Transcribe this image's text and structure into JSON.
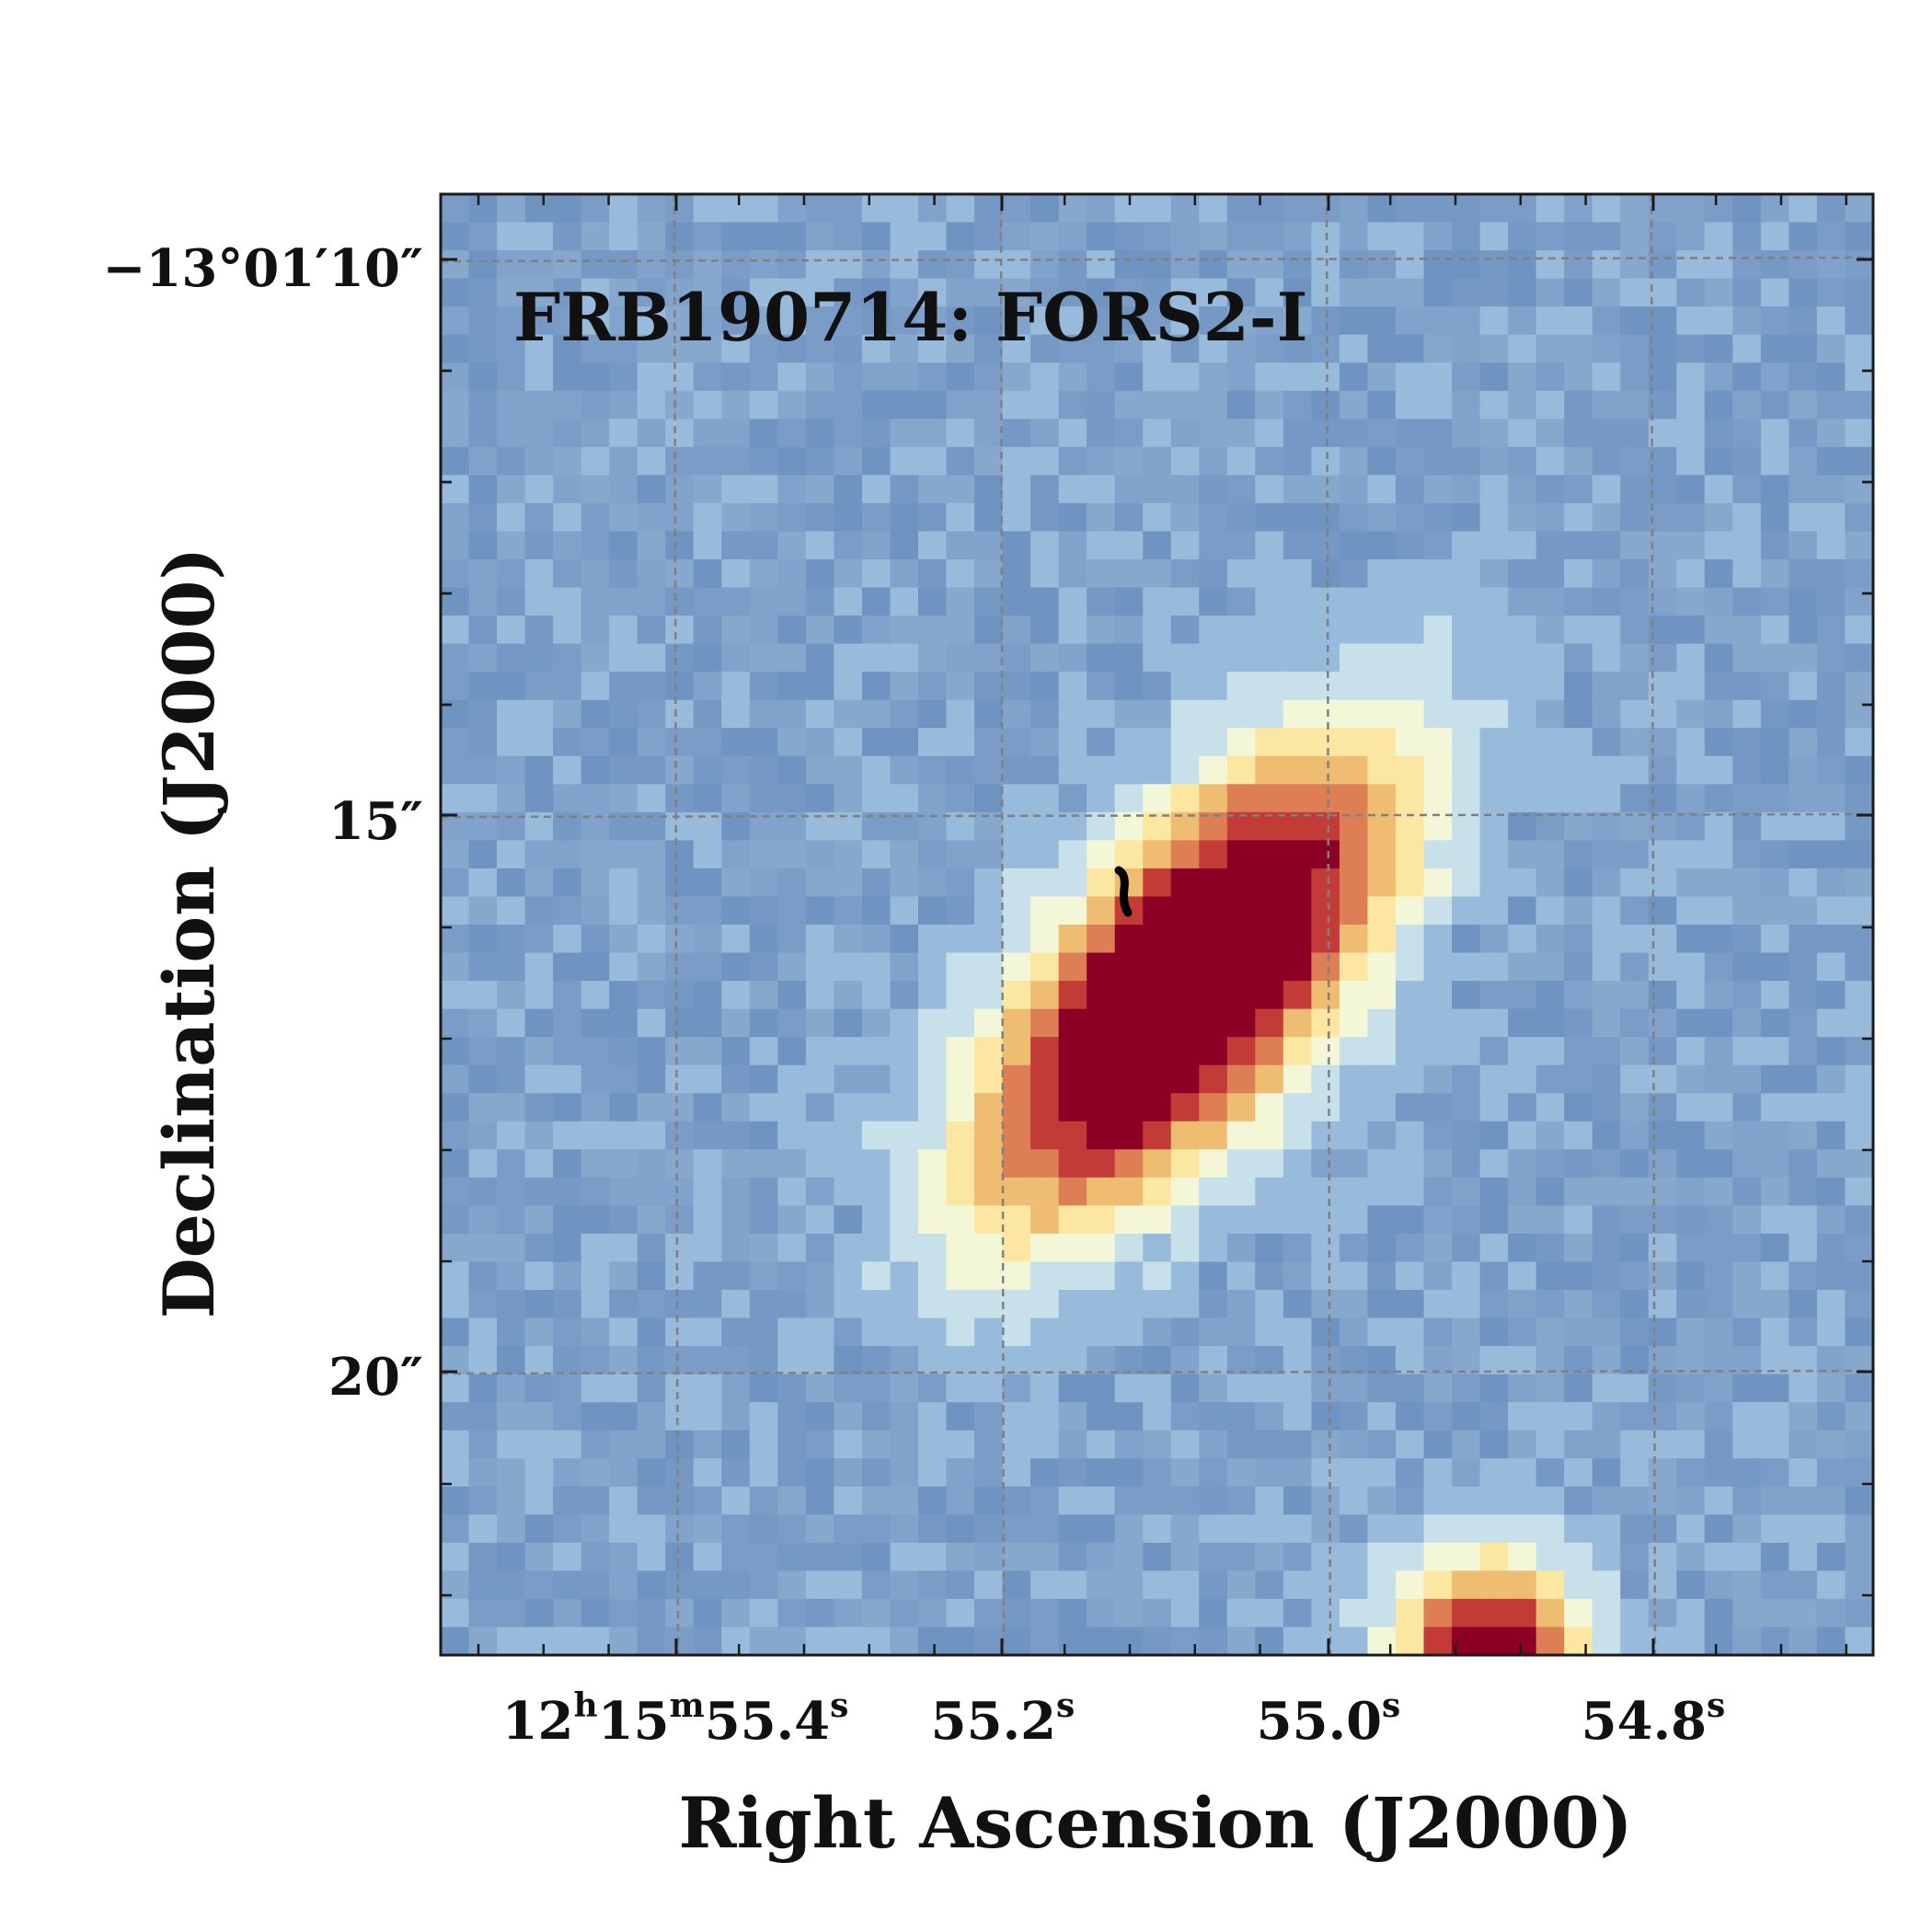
{
  "panel_title": "FRB190714: FORS2-I",
  "axes": {
    "x_label": "Right Ascension (J2000)",
    "y_label": "Declination (J2000)",
    "x_ticks": [
      {
        "main": "12",
        "sup1": "h",
        "mid": "15",
        "sup2": "m",
        "tail": "55.4",
        "sup3": "s"
      },
      {
        "main": "55.2",
        "sup": "s"
      },
      {
        "main": "55.0",
        "sup": "s"
      },
      {
        "main": "54.8",
        "sup": "s"
      }
    ],
    "y_ticks": [
      "−13°01′10″",
      "15″",
      "20″"
    ]
  },
  "colors": {
    "background_sky": "#7d9fc8",
    "frame": "#1a1a1a",
    "grid": "#808080",
    "colormap": [
      "#7b9cc6",
      "#98bbdc",
      "#c8e0ea",
      "#f3f7d8",
      "#fbe7a2",
      "#efbd72",
      "#de7e55",
      "#c23b37",
      "#8d0026"
    ],
    "marker": "#000000"
  },
  "grid_on": true,
  "colormap_name": "RdYlBu_r"
}
